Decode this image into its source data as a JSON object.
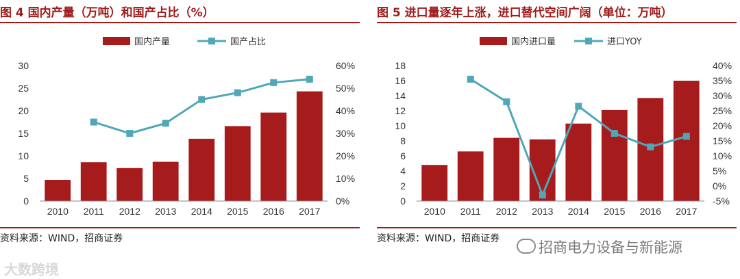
{
  "charts": [
    {
      "title": "图 4 国内产量（万吨）和国产占比（%）",
      "source": "资料来源：WIND，招商证券",
      "chart_data": {
        "type": "bar+line",
        "categories": [
          "2010",
          "2011",
          "2012",
          "2013",
          "2014",
          "2015",
          "2016",
          "2017"
        ],
        "series": [
          {
            "name": "国内产量",
            "type": "bar",
            "axis": "left",
            "color": "#a61b1b",
            "values": [
              4.7,
              8.6,
              7.3,
              8.7,
              13.8,
              16.6,
              19.6,
              24.3
            ]
          },
          {
            "name": "国产占比",
            "type": "line",
            "axis": "right",
            "color": "#4fa7b8",
            "values": [
              null,
              35,
              30,
              34.5,
              45,
              48,
              52.5,
              54
            ]
          }
        ],
        "y_left": {
          "min": 0,
          "max": 30,
          "step": 5,
          "ticks": [
            "0",
            "5",
            "10",
            "15",
            "20",
            "25",
            "30"
          ]
        },
        "y_right": {
          "min": 0,
          "max": 60,
          "step": 10,
          "ticks": [
            "0%",
            "10%",
            "20%",
            "30%",
            "40%",
            "50%",
            "60%"
          ]
        }
      }
    },
    {
      "title": "图 5 进口量逐年上涨，进口替代空间广阔（单位：万吨）",
      "source": "资料来源：WIND，招商证券",
      "chart_data": {
        "type": "bar+line",
        "categories": [
          "2010",
          "2011",
          "2012",
          "2013",
          "2014",
          "2015",
          "2016",
          "2017"
        ],
        "series": [
          {
            "name": "国内进口量",
            "type": "bar",
            "axis": "left",
            "color": "#a61b1b",
            "values": [
              4.8,
              6.6,
              8.4,
              8.2,
              10.3,
              12.1,
              13.7,
              16.0
            ]
          },
          {
            "name": "进口YOY",
            "type": "line",
            "axis": "right",
            "color": "#4fa7b8",
            "values": [
              null,
              35.5,
              28,
              -3,
              26.5,
              17.5,
              13,
              16.5
            ]
          }
        ],
        "y_left": {
          "min": 0,
          "max": 18,
          "step": 2,
          "ticks": [
            "0",
            "2",
            "4",
            "6",
            "8",
            "10",
            "12",
            "14",
            "16",
            "18"
          ]
        },
        "y_right": {
          "min": -5,
          "max": 40,
          "step": 5,
          "ticks": [
            "-5%",
            "0%",
            "5%",
            "10%",
            "15%",
            "20%",
            "25%",
            "30%",
            "35%",
            "40%"
          ]
        }
      }
    }
  ],
  "watermarks": {
    "left": "大数跨境",
    "right": "招商电力设备与新能源"
  }
}
